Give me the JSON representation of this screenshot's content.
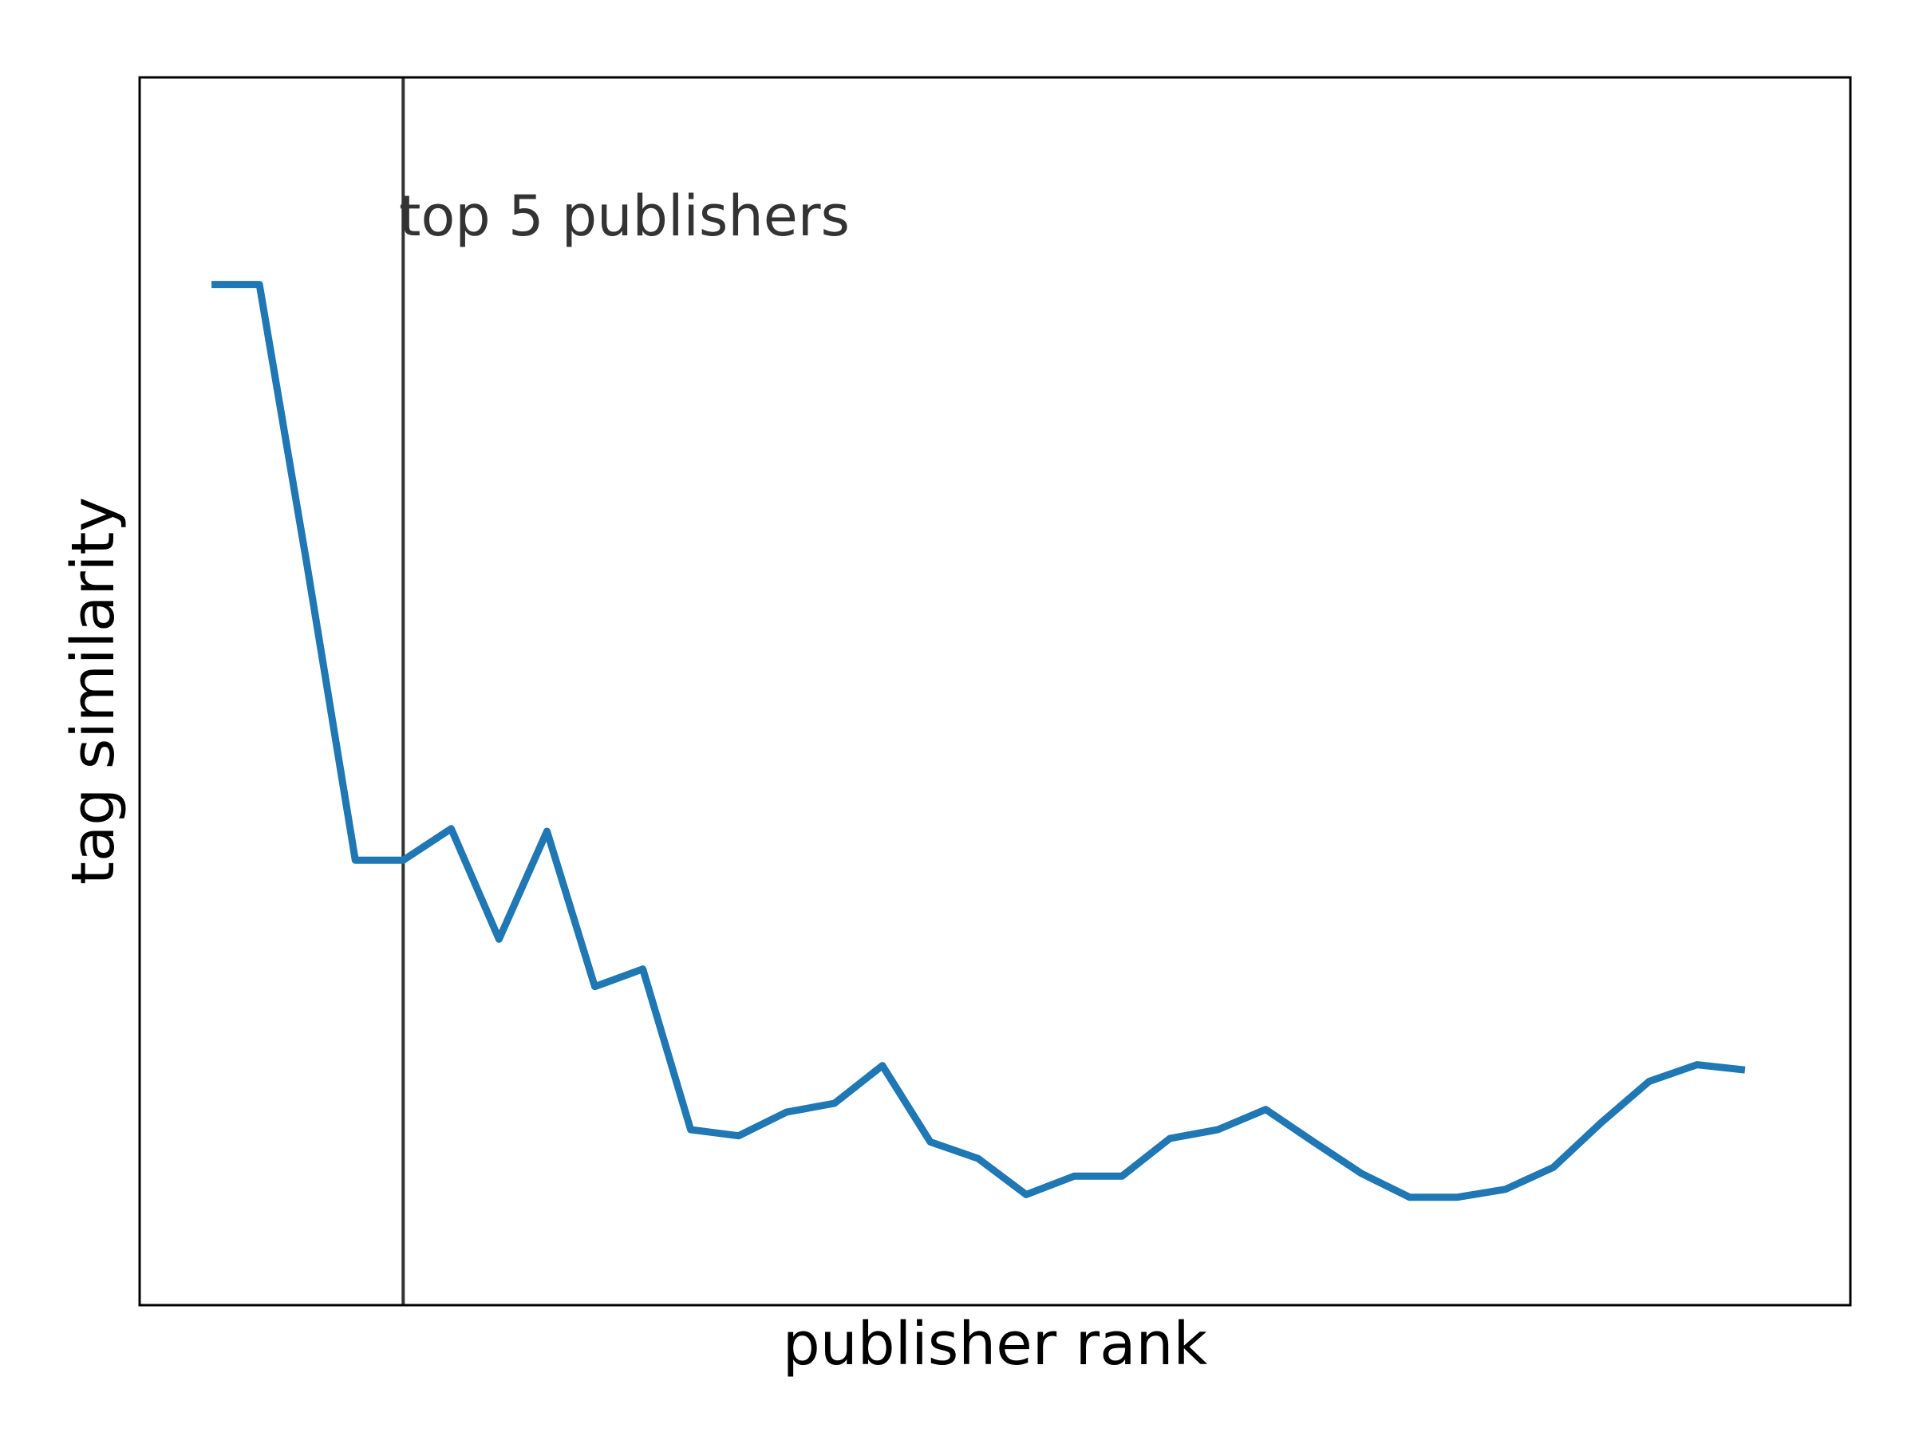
{
  "chart_data": {
    "type": "line",
    "xlabel": "publisher rank",
    "ylabel": "tag similarity",
    "x": [
      1,
      2,
      3,
      4,
      5,
      6,
      7,
      8,
      9,
      10,
      11,
      12,
      13,
      14,
      15,
      16,
      17,
      18,
      19,
      20,
      21,
      22,
      23,
      24,
      25,
      26,
      27,
      28,
      29,
      30,
      31,
      32,
      33,
      34,
      35
    ],
    "series": [
      {
        "values": [
          0.96,
          0.96,
          0.638,
          0.304,
          0.304,
          0.34,
          0.214,
          0.337,
          0.16,
          0.18,
          -0.003,
          -0.01,
          0.017,
          0.027,
          0.07,
          -0.017,
          -0.036,
          -0.077,
          -0.056,
          -0.056,
          -0.013,
          -0.003,
          0.02,
          -0.017,
          -0.053,
          -0.08,
          -0.08,
          -0.071,
          -0.046,
          0.005,
          0.052,
          0.071,
          0.065,
          null,
          null
        ],
        "color": "#1f77b4"
      }
    ],
    "xlim": [
      -0.5,
      35.2
    ],
    "ylim": [
      -0.203,
      1.196
    ],
    "vline_x": 5,
    "vline_color": "#333333",
    "annotation": "top 5 publishers",
    "grid": false,
    "ticks": false
  }
}
